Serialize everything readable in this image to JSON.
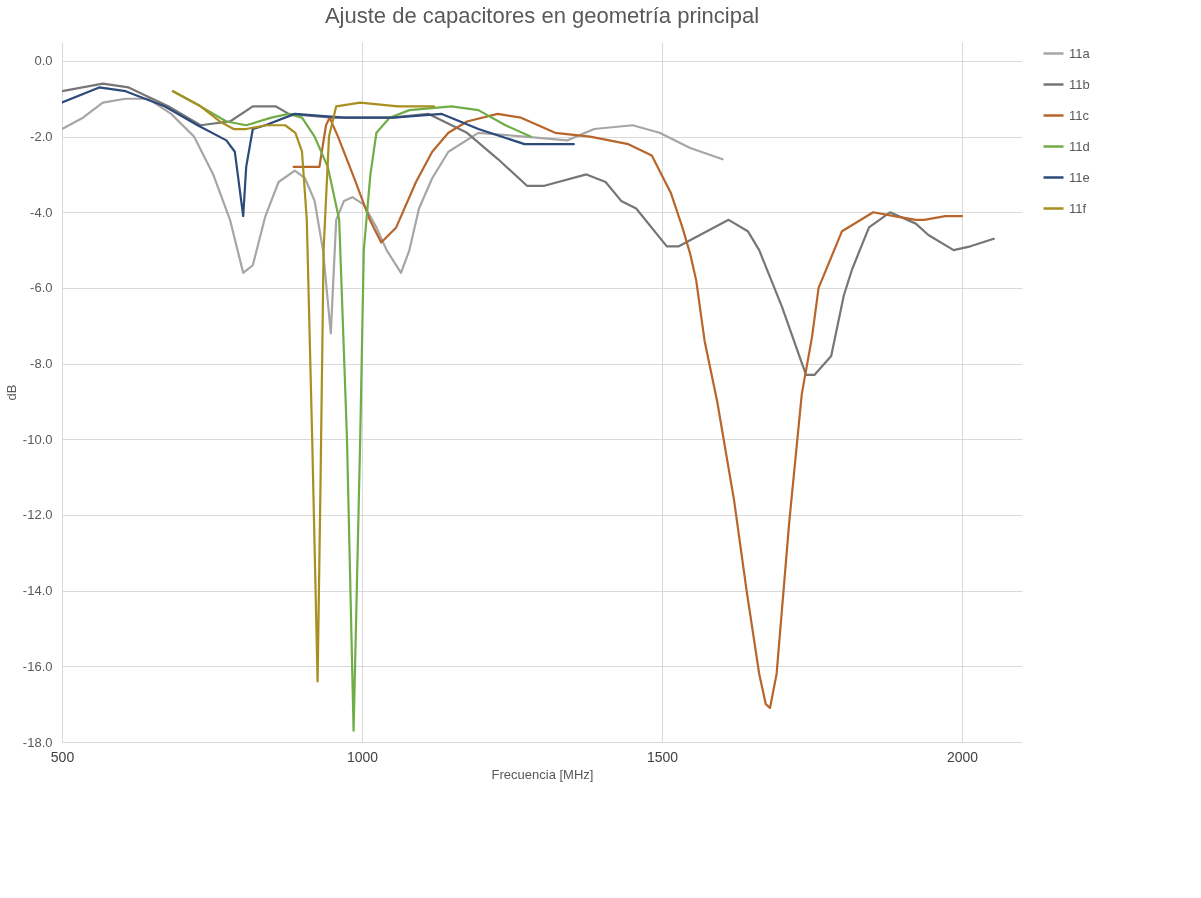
{
  "chart_data": {
    "type": "line",
    "title": "Ajuste de capacitores en geometría principal",
    "xlabel": "Frecuencia [MHz]",
    "ylabel": "dB",
    "xlim": [
      500,
      2100
    ],
    "xticks": [
      500,
      1000,
      1500,
      2000
    ],
    "ylim": [
      -18,
      0.5
    ],
    "yticks": [
      {
        "value": 0,
        "label": "0.0"
      },
      {
        "value": -2,
        "label": "-2.0"
      },
      {
        "value": -4,
        "label": "-4.0"
      },
      {
        "value": -6,
        "label": "-6.0"
      },
      {
        "value": -8,
        "label": "-8.0"
      },
      {
        "value": -10,
        "label": "-10.0"
      },
      {
        "value": -12,
        "label": "-12.0"
      },
      {
        "value": -14,
        "label": "-14.0"
      },
      {
        "value": -16,
        "label": "-16.0"
      },
      {
        "value": -18,
        "label": "-18.0"
      }
    ],
    "grid": true,
    "legend": "right",
    "marker": "none",
    "line_style": "solid",
    "series": [
      {
        "name": "11a",
        "color": "#a6a6a6",
        "x": [
          500,
          535,
          568,
          606,
          644,
          682,
          720,
          752,
          780,
          802,
          818,
          839,
          861,
          888,
          905,
          921,
          935,
          948,
          957,
          970,
          984,
          1003,
          1024,
          1041,
          1065,
          1079,
          1095,
          1117,
          1144,
          1194,
          1271,
          1342,
          1387,
          1451,
          1496,
          1547,
          1601
        ],
        "values": [
          -1.8,
          -1.5,
          -1.1,
          -1.0,
          -1.0,
          -1.4,
          -2.0,
          -3.0,
          -4.2,
          -5.6,
          -5.4,
          -4.1,
          -3.2,
          -2.9,
          -3.1,
          -3.7,
          -5.0,
          -7.2,
          -4.2,
          -3.7,
          -3.6,
          -3.8,
          -4.4,
          -5.0,
          -5.6,
          -5.0,
          -3.9,
          -3.1,
          -2.4,
          -1.9,
          -2.0,
          -2.1,
          -1.8,
          -1.7,
          -1.9,
          -2.3,
          -2.6
        ]
      },
      {
        "name": "11b",
        "color": "#767676",
        "x": [
          500,
          568,
          611,
          677,
          731,
          780,
          818,
          856,
          878,
          950,
          1050,
          1111,
          1175,
          1227,
          1275,
          1304,
          1374,
          1406,
          1432,
          1457,
          1508,
          1528,
          1611,
          1643,
          1662,
          1700,
          1740,
          1754,
          1782,
          1803,
          1817,
          1845,
          1880,
          1923,
          1944,
          1986,
          2014,
          2053
        ],
        "values": [
          -0.8,
          -0.6,
          -0.7,
          -1.2,
          -1.7,
          -1.6,
          -1.2,
          -1.2,
          -1.4,
          -1.5,
          -1.5,
          -1.4,
          -1.9,
          -2.6,
          -3.3,
          -3.3,
          -3.0,
          -3.2,
          -3.7,
          -3.9,
          -4.9,
          -4.9,
          -4.2,
          -4.5,
          -5.0,
          -6.5,
          -8.3,
          -8.3,
          -7.8,
          -6.2,
          -5.5,
          -4.4,
          -4.0,
          -4.3,
          -4.6,
          -5.0,
          -4.9,
          -4.7
        ]
      },
      {
        "name": "11c",
        "color": "#b8652c",
        "x": [
          886,
          905,
          929,
          940,
          946,
          960,
          987,
          1013,
          1032,
          1057,
          1090,
          1117,
          1144,
          1175,
          1226,
          1265,
          1322,
          1380,
          1444,
          1483,
          1515,
          1534,
          1547,
          1557,
          1571,
          1592,
          1620,
          1641,
          1662,
          1673,
          1680,
          1691,
          1712,
          1733,
          1750,
          1761,
          1800,
          1852,
          1887,
          1923,
          1937,
          1972,
          2000
        ],
        "values": [
          -2.8,
          -2.8,
          -2.8,
          -1.7,
          -1.5,
          -2.0,
          -3.1,
          -4.2,
          -4.8,
          -4.4,
          -3.2,
          -2.4,
          -1.9,
          -1.6,
          -1.4,
          -1.5,
          -1.9,
          -2.0,
          -2.2,
          -2.5,
          -3.5,
          -4.4,
          -5.1,
          -5.8,
          -7.4,
          -9.0,
          -11.6,
          -14.0,
          -16.2,
          -17.0,
          -17.1,
          -16.2,
          -12.2,
          -8.8,
          -7.3,
          -6.0,
          -4.5,
          -4.0,
          -4.1,
          -4.2,
          -4.2,
          -4.1,
          -4.1
        ]
      },
      {
        "name": "11d",
        "color": "#70ad47",
        "x": [
          685,
          731,
          774,
          807,
          849,
          878,
          900,
          921,
          943,
          962,
          975,
          986,
          997,
          1003,
          1014,
          1024,
          1046,
          1079,
          1149,
          1194,
          1239,
          1281
        ],
        "values": [
          -0.8,
          -1.2,
          -1.6,
          -1.7,
          -1.5,
          -1.4,
          -1.5,
          -2.0,
          -2.8,
          -4.2,
          -10.0,
          -17.7,
          -10.0,
          -5.0,
          -3.0,
          -1.9,
          -1.5,
          -1.3,
          -1.2,
          -1.3,
          -1.7,
          -2.0
        ]
      },
      {
        "name": "11e",
        "color": "#2c4a7a",
        "x": [
          500,
          562,
          606,
          671,
          726,
          774,
          788,
          802,
          807,
          818,
          839,
          888,
          970,
          1000,
          1052,
          1133,
          1194,
          1271,
          1353
        ],
        "values": [
          -1.1,
          -0.7,
          -0.8,
          -1.2,
          -1.7,
          -2.1,
          -2.4,
          -4.1,
          -2.8,
          -1.8,
          -1.7,
          -1.4,
          -1.5,
          -1.5,
          -1.5,
          -1.4,
          -1.8,
          -2.2,
          -2.2
        ]
      },
      {
        "name": "11f",
        "color": "#a88f1f",
        "x": [
          685,
          731,
          763,
          786,
          807,
          840,
          872,
          889,
          900,
          908,
          917,
          926,
          931,
          936,
          945,
          957,
          997,
          1060,
          1120
        ],
        "values": [
          -0.8,
          -1.2,
          -1.6,
          -1.8,
          -1.8,
          -1.7,
          -1.7,
          -1.9,
          -2.4,
          -4.2,
          -10.0,
          -16.4,
          -11.0,
          -5.0,
          -2.0,
          -1.2,
          -1.1,
          -1.2,
          -1.2
        ]
      }
    ]
  }
}
